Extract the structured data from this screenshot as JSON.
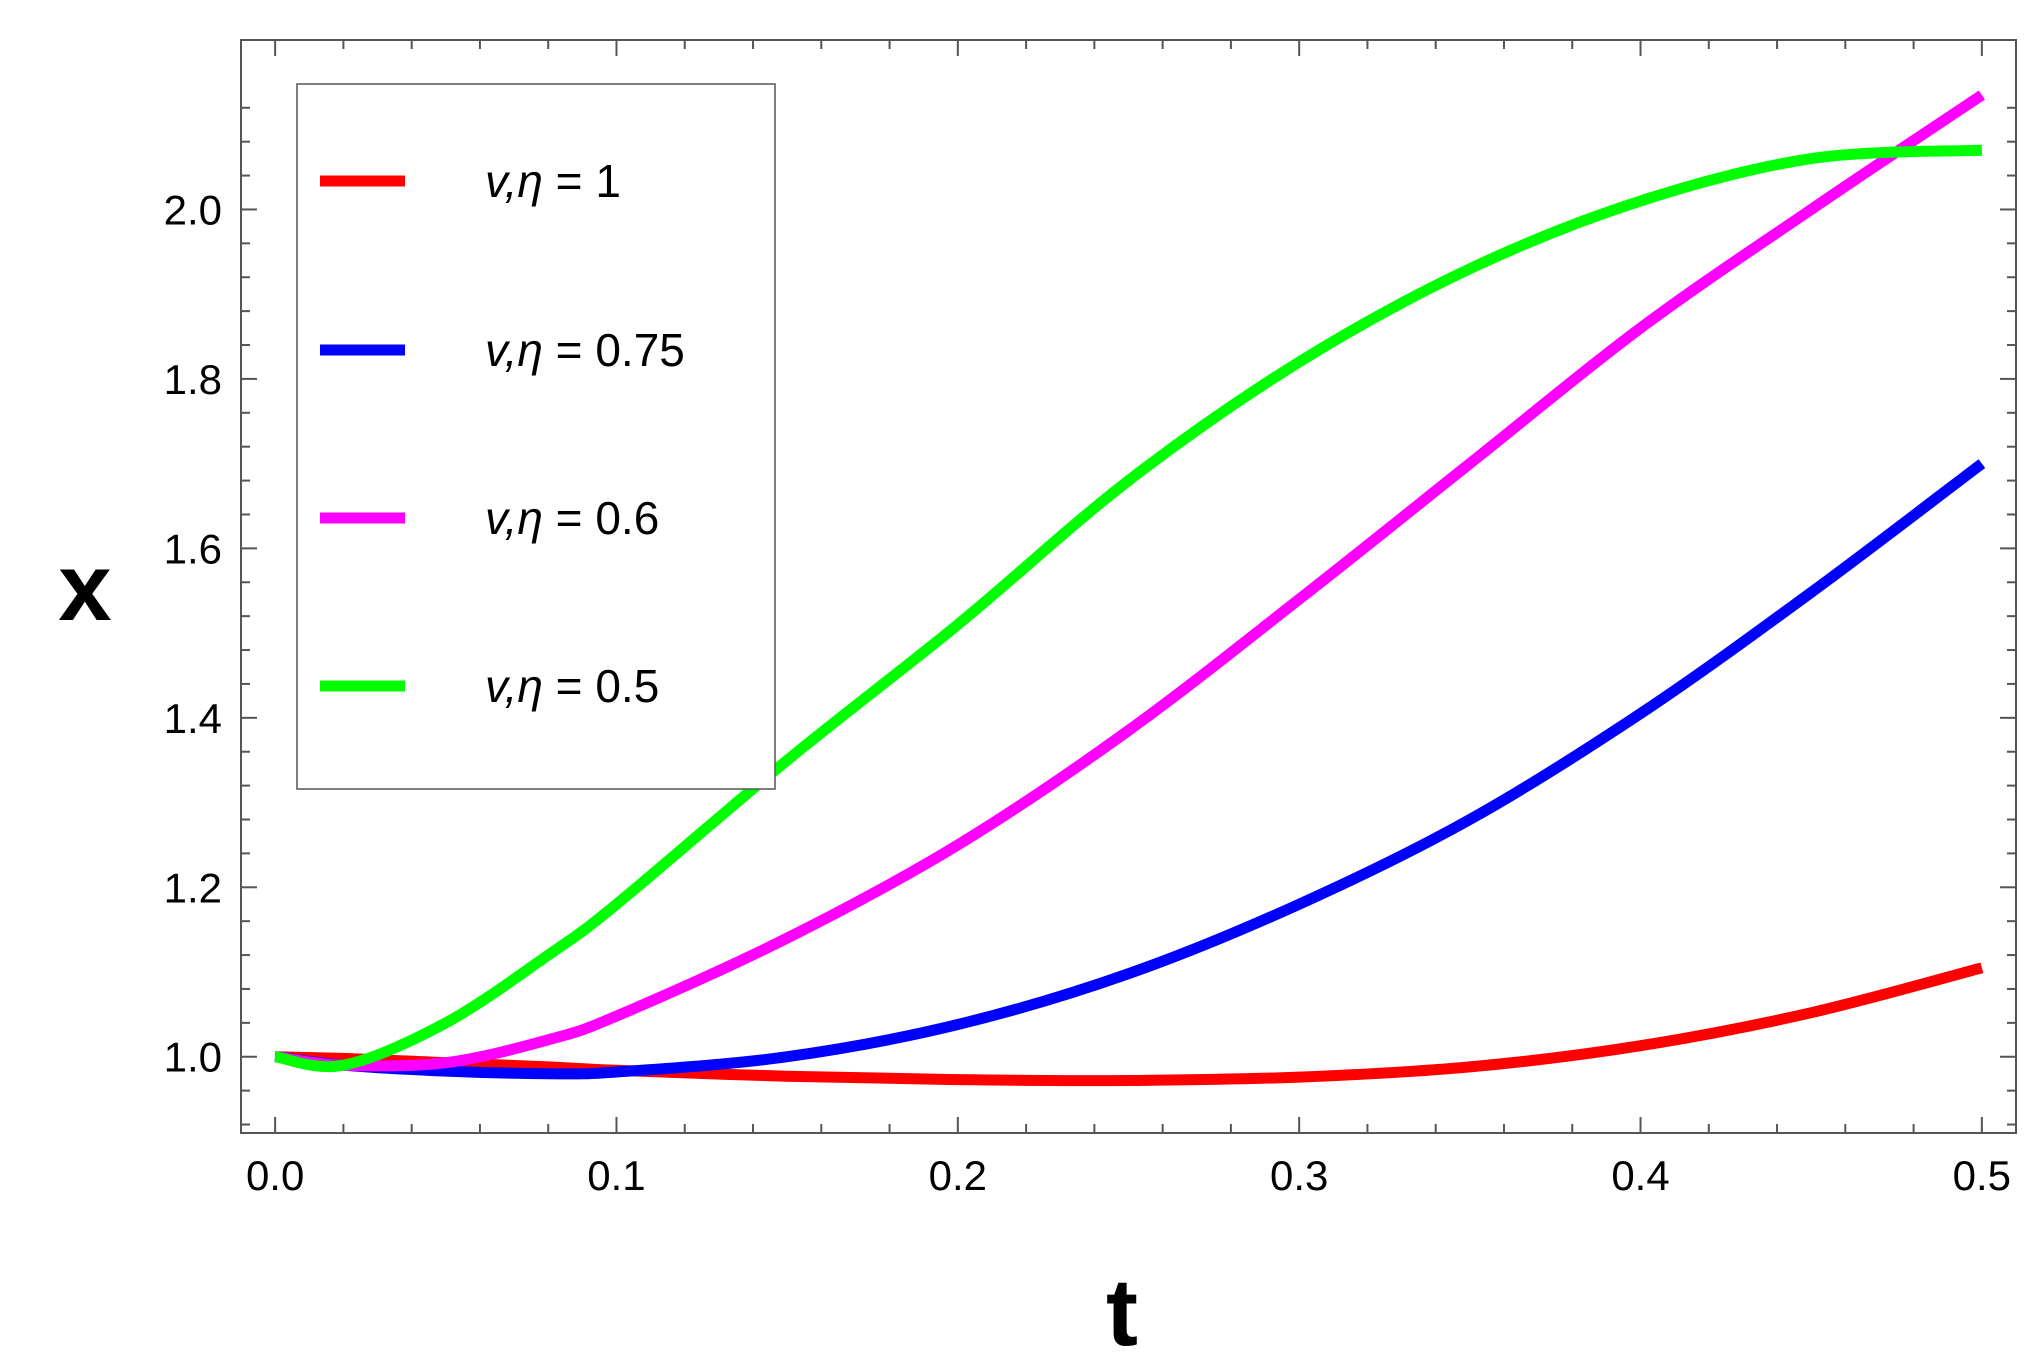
{
  "chart_data": {
    "type": "line",
    "title": "",
    "xlabel": "t",
    "ylabel": "x",
    "xlim": [
      -0.01,
      0.51
    ],
    "ylim": [
      0.91,
      2.2
    ],
    "xticks": [
      0.0,
      0.1,
      0.2,
      0.3,
      0.4,
      0.5
    ],
    "xtick_labels": [
      "0.0",
      "0.1",
      "0.2",
      "0.3",
      "0.4",
      "0.5"
    ],
    "yticks": [
      1.0,
      1.2,
      1.4,
      1.6,
      1.8,
      2.0
    ],
    "ytick_labels": [
      "1.0",
      "1.2",
      "1.4",
      "1.6",
      "1.8",
      "2.0"
    ],
    "grid": false,
    "legend_position": "top-left",
    "x": [
      0.0,
      0.02,
      0.05,
      0.08,
      0.1,
      0.15,
      0.2,
      0.25,
      0.3,
      0.35,
      0.4,
      0.45,
      0.5
    ],
    "series": [
      {
        "name": "v,η = 1",
        "legend_prefix": "v,η",
        "legend_value": "= 1",
        "color": "#ff0000",
        "values": [
          1.0,
          0.998,
          0.993,
          0.988,
          0.984,
          0.977,
          0.973,
          0.972,
          0.976,
          0.988,
          1.013,
          1.052,
          1.105
        ]
      },
      {
        "name": "v,η = 0.75",
        "legend_prefix": "v,η",
        "legend_value": "= 0.75",
        "color": "#0000ff",
        "values": [
          1.0,
          0.99,
          0.983,
          0.98,
          0.982,
          1.0,
          1.038,
          1.098,
          1.18,
          1.28,
          1.405,
          1.548,
          1.7
        ]
      },
      {
        "name": "v,η = 0.6",
        "legend_prefix": "v,η",
        "legend_value": "= 0.6",
        "color": "#ff00ff",
        "values": [
          1.0,
          0.99,
          0.993,
          1.02,
          1.048,
          1.14,
          1.25,
          1.385,
          1.54,
          1.7,
          1.86,
          2.0,
          2.135
        ]
      },
      {
        "name": "v,η = 0.5",
        "legend_prefix": "v,η",
        "legend_value": "= 0.5",
        "color": "#00ff00",
        "values": [
          1.0,
          0.99,
          1.04,
          1.12,
          1.18,
          1.35,
          1.51,
          1.68,
          1.82,
          1.93,
          2.01,
          2.06,
          2.07
        ]
      }
    ]
  }
}
